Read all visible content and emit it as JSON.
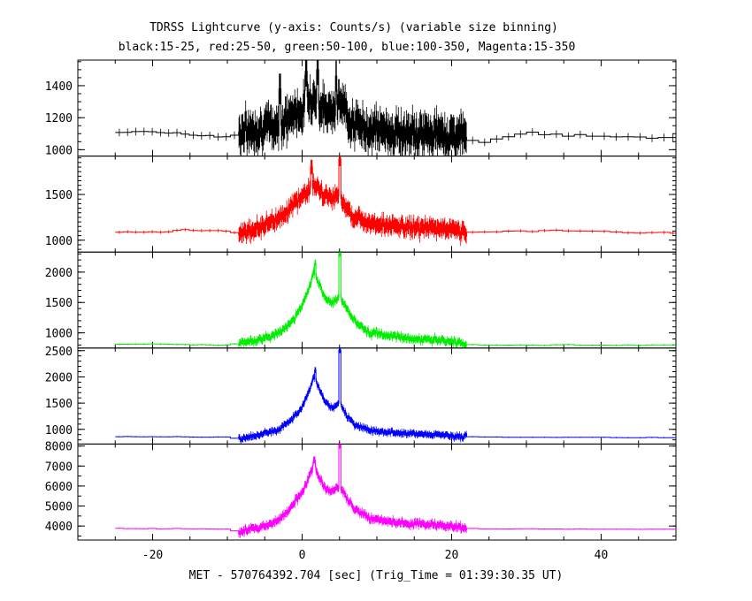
{
  "chart_data": [
    {
      "type": "line",
      "title": "TDRSS Lightcurve (y-axis: Counts/s) (variable size binning)",
      "subtitle": "black:15-25, red:25-50, green:50-100, blue:100-350, Magenta:15-350",
      "xlabel": "MET - 570764392.704 [sec] (Trig_Time = 01:39:30.35 UT)",
      "xlim": [
        -30,
        50
      ],
      "x_ticks": [
        -20,
        0,
        20,
        40
      ],
      "panels": [
        {
          "name": "15-25",
          "color": "#000000",
          "ylim": [
            960,
            1560
          ],
          "y_ticks": [
            1000,
            1200,
            1400
          ],
          "baseline": 1100,
          "pre_noise": 40,
          "burst_noise": 120,
          "points": [
            [
              -25,
              1110
            ],
            [
              -20,
              1115
            ],
            [
              -15,
              1095
            ],
            [
              -10,
              1080
            ],
            [
              -8.5,
              1100
            ],
            [
              -6,
              1130
            ],
            [
              -3,
              1150
            ],
            [
              -1,
              1230
            ],
            [
              0,
              1250
            ],
            [
              1,
              1340
            ],
            [
              2,
              1290
            ],
            [
              3,
              1240
            ],
            [
              4,
              1270
            ],
            [
              5,
              1300
            ],
            [
              6,
              1230
            ],
            [
              7,
              1150
            ],
            [
              9,
              1130
            ],
            [
              12,
              1110
            ],
            [
              15,
              1090
            ],
            [
              18,
              1100
            ],
            [
              20,
              1080
            ],
            [
              21,
              1100
            ],
            [
              22,
              1070
            ],
            [
              25,
              1050
            ],
            [
              30,
              1100
            ],
            [
              35,
              1095
            ],
            [
              40,
              1085
            ],
            [
              45,
              1080
            ],
            [
              50,
              1080
            ]
          ],
          "spikes": [
            [
              0.5,
              1490
            ],
            [
              2,
              1500
            ],
            [
              4.5,
              1460
            ],
            [
              -3,
              1380
            ]
          ]
        },
        {
          "name": "25-50",
          "color": "#ff0000",
          "ylim": [
            870,
            1920
          ],
          "y_ticks": [
            1000,
            1500
          ],
          "baseline": 1090,
          "pre_noise": 30,
          "burst_noise": 100,
          "points": [
            [
              -25,
              1090
            ],
            [
              -20,
              1090
            ],
            [
              -15,
              1110
            ],
            [
              -10,
              1100
            ],
            [
              -8.5,
              1080
            ],
            [
              -6,
              1130
            ],
            [
              -3,
              1250
            ],
            [
              -1,
              1400
            ],
            [
              0,
              1480
            ],
            [
              1,
              1560
            ],
            [
              1.5,
              1610
            ],
            [
              2,
              1560
            ],
            [
              3,
              1480
            ],
            [
              4,
              1470
            ],
            [
              5,
              1500
            ],
            [
              6,
              1350
            ],
            [
              7,
              1250
            ],
            [
              9,
              1200
            ],
            [
              12,
              1150
            ],
            [
              15,
              1140
            ],
            [
              18,
              1130
            ],
            [
              20,
              1120
            ],
            [
              21,
              1110
            ],
            [
              22,
              1080
            ],
            [
              25,
              1090
            ],
            [
              30,
              1100
            ],
            [
              35,
              1105
            ],
            [
              40,
              1095
            ],
            [
              45,
              1085
            ],
            [
              50,
              1080
            ]
          ],
          "spikes": [
            [
              5,
              1890
            ],
            [
              1.2,
              1800
            ]
          ]
        },
        {
          "name": "50-100",
          "color": "#00ee00",
          "ylim": [
            750,
            2330
          ],
          "y_ticks": [
            1000,
            1500,
            2000
          ],
          "baseline": 800,
          "pre_noise": 25,
          "burst_noise": 70,
          "points": [
            [
              -25,
              810
            ],
            [
              -20,
              815
            ],
            [
              -15,
              805
            ],
            [
              -10,
              800
            ],
            [
              -8.5,
              830
            ],
            [
              -6,
              880
            ],
            [
              -3,
              1000
            ],
            [
              -1,
              1250
            ],
            [
              0,
              1450
            ],
            [
              1,
              1750
            ],
            [
              1.5,
              2000
            ],
            [
              2,
              1850
            ],
            [
              3,
              1600
            ],
            [
              4,
              1480
            ],
            [
              5,
              1600
            ],
            [
              6,
              1400
            ],
            [
              7,
              1200
            ],
            [
              9,
              1000
            ],
            [
              12,
              950
            ],
            [
              15,
              900
            ],
            [
              18,
              880
            ],
            [
              20,
              850
            ],
            [
              21,
              840
            ],
            [
              22,
              810
            ],
            [
              25,
              800
            ],
            [
              30,
              800
            ],
            [
              35,
              800
            ],
            [
              40,
              800
            ],
            [
              45,
              800
            ],
            [
              50,
              800
            ]
          ],
          "spikes": [
            [
              5,
              2310
            ],
            [
              1.7,
              2150
            ]
          ]
        },
        {
          "name": "100-350",
          "color": "#0000ff",
          "ylim": [
            720,
            2550
          ],
          "y_ticks": [
            1000,
            1500,
            2000,
            2500
          ],
          "baseline": 850,
          "pre_noise": 20,
          "burst_noise": 70,
          "points": [
            [
              -25,
              860
            ],
            [
              -20,
              860
            ],
            [
              -15,
              855
            ],
            [
              -10,
              850
            ],
            [
              -8.5,
              820
            ],
            [
              -6,
              880
            ],
            [
              -3,
              1000
            ],
            [
              -1,
              1250
            ],
            [
              0,
              1450
            ],
            [
              1,
              1750
            ],
            [
              1.5,
              2000
            ],
            [
              2,
              1850
            ],
            [
              3,
              1550
            ],
            [
              4,
              1400
            ],
            [
              5,
              1500
            ],
            [
              6,
              1250
            ],
            [
              7,
              1100
            ],
            [
              9,
              980
            ],
            [
              12,
              940
            ],
            [
              15,
              920
            ],
            [
              18,
              900
            ],
            [
              20,
              880
            ],
            [
              21,
              860
            ],
            [
              22,
              860
            ],
            [
              25,
              855
            ],
            [
              30,
              850
            ],
            [
              35,
              850
            ],
            [
              40,
              850
            ],
            [
              45,
              840
            ],
            [
              50,
              840
            ]
          ],
          "spikes": [
            [
              5,
              2510
            ],
            [
              1.7,
              2130
            ]
          ]
        },
        {
          "name": "15-350",
          "color": "#ff00ff",
          "ylim": [
            3300,
            8100
          ],
          "y_ticks": [
            4000,
            5000,
            6000,
            7000,
            8000
          ],
          "baseline": 3850,
          "pre_noise": 50,
          "burst_noise": 220,
          "points": [
            [
              -25,
              3880
            ],
            [
              -20,
              3870
            ],
            [
              -15,
              3860
            ],
            [
              -10,
              3850
            ],
            [
              -8.5,
              3700
            ],
            [
              -6,
              3900
            ],
            [
              -3,
              4300
            ],
            [
              -1,
              5200
            ],
            [
              0,
              5700
            ],
            [
              1,
              6500
            ],
            [
              1.5,
              7000
            ],
            [
              2,
              6700
            ],
            [
              3,
              5900
            ],
            [
              4,
              5700
            ],
            [
              5,
              6000
            ],
            [
              6,
              5400
            ],
            [
              7,
              4900
            ],
            [
              9,
              4400
            ],
            [
              12,
              4200
            ],
            [
              15,
              4100
            ],
            [
              18,
              4050
            ],
            [
              20,
              4000
            ],
            [
              21,
              3950
            ],
            [
              22,
              3880
            ],
            [
              25,
              3850
            ],
            [
              30,
              3860
            ],
            [
              35,
              3850
            ],
            [
              40,
              3850
            ],
            [
              45,
              3840
            ],
            [
              50,
              3840
            ]
          ],
          "spikes": [
            [
              5,
              8050
            ],
            [
              1.6,
              7300
            ]
          ]
        }
      ]
    }
  ]
}
